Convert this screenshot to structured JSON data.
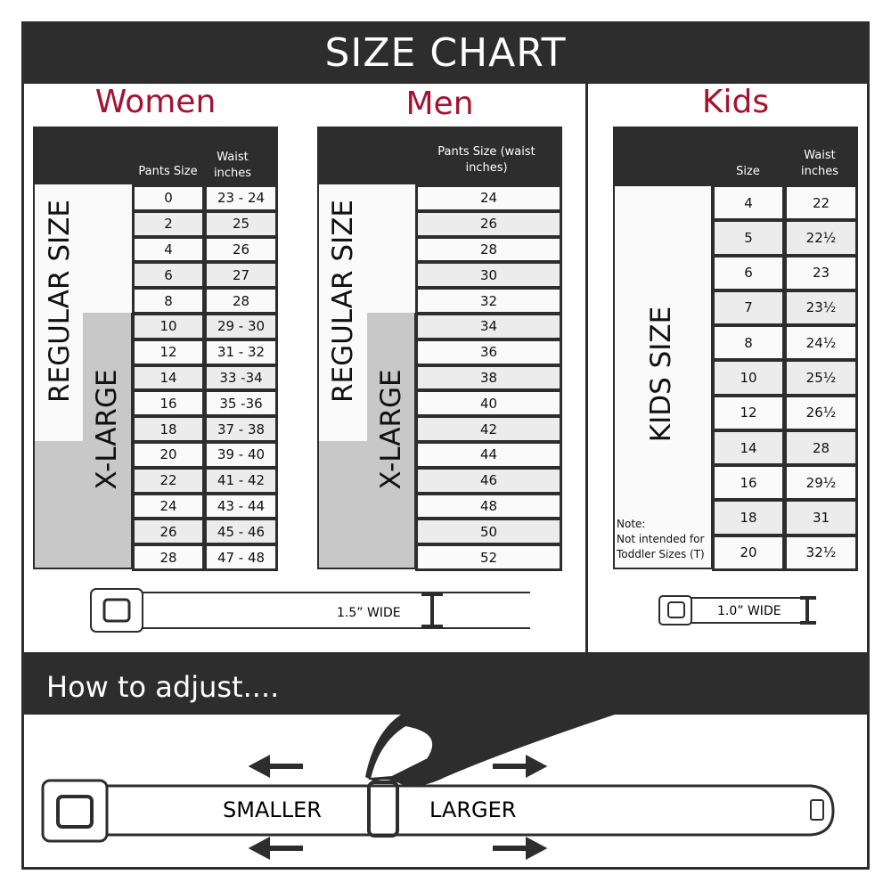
{
  "title": "SIZE CHART",
  "women": {
    "heading": "Women",
    "col1": "Pants Size",
    "col2": "Waist inches",
    "regular_label": "REGULAR SIZE",
    "xlarge_label": "X-LARGE",
    "rows": [
      [
        "0",
        "23 - 24"
      ],
      [
        "2",
        "25"
      ],
      [
        "4",
        "26"
      ],
      [
        "6",
        "27"
      ],
      [
        "8",
        "28"
      ],
      [
        "10",
        "29 - 30"
      ],
      [
        "12",
        "31 - 32"
      ],
      [
        "14",
        "33 -34"
      ],
      [
        "16",
        "35 -36"
      ],
      [
        "18",
        "37 - 38"
      ],
      [
        "20",
        "39 - 40"
      ],
      [
        "22",
        "41 - 42"
      ],
      [
        "24",
        "43 - 44"
      ],
      [
        "26",
        "45 - 46"
      ],
      [
        "28",
        "47 - 48"
      ]
    ],
    "width_label": "1.5” WIDE"
  },
  "men": {
    "heading": "Men",
    "col1": "Pants Size (waist inches)",
    "regular_label": "REGULAR SIZE",
    "xlarge_label": "X-LARGE",
    "rows": [
      "24",
      "26",
      "28",
      "30",
      "32",
      "34",
      "36",
      "38",
      "40",
      "42",
      "44",
      "46",
      "48",
      "50",
      "52"
    ]
  },
  "kids": {
    "heading": "Kids",
    "col1": "Size",
    "col2": "Waist inches",
    "label": "KIDS SIZE",
    "note": "Note:",
    "note_text": "Not intended for Toddler Sizes (T)",
    "rows": [
      [
        "4",
        "22"
      ],
      [
        "5",
        "22½"
      ],
      [
        "6",
        "23"
      ],
      [
        "7",
        "23½"
      ],
      [
        "8",
        "24½"
      ],
      [
        "10",
        "25½"
      ],
      [
        "12",
        "26½"
      ],
      [
        "14",
        "28"
      ],
      [
        "16",
        "29½"
      ],
      [
        "18",
        "31"
      ],
      [
        "20",
        "32½"
      ]
    ],
    "width_label": "1.0” WIDE"
  },
  "adjust": {
    "heading": "How to adjust....",
    "smaller": "SMALLER",
    "larger": "LARGER"
  },
  "colors": {
    "dark": "#2d2d2d",
    "accent": "#a6112e",
    "xlarge_gray": "#c8c8c8"
  }
}
